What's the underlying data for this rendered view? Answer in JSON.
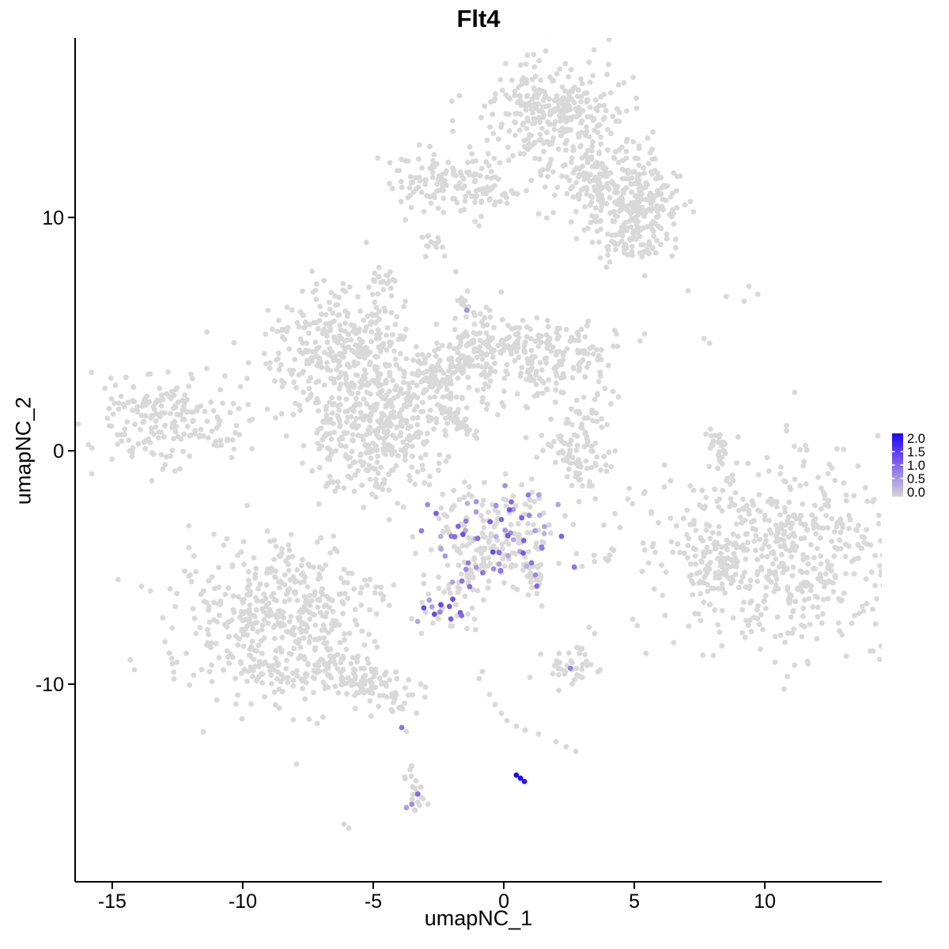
{
  "chart_data": {
    "type": "scatter",
    "title": "Flt4",
    "xlabel": "umapNC_1",
    "ylabel": "umapNC_2",
    "x_ticks": [
      -15,
      -10,
      -5,
      0,
      5,
      10
    ],
    "y_ticks": [
      -10,
      0,
      10
    ],
    "x_range": [
      -16.42,
      14.48
    ],
    "y_range": [
      -18.47,
      17.69
    ],
    "grid": "off",
    "legend_position": "right",
    "point_color_zero": "#D9D9D9",
    "colorbar": {
      "min": 0,
      "max": 2,
      "tick_values": [
        2.0,
        1.5,
        1.0,
        0.5,
        0.0
      ],
      "tick_labels": [
        "2.0",
        "1.5",
        "1.0",
        "0.5",
        "0.0"
      ],
      "stops": [
        [
          0,
          "#D3D3D3"
        ],
        [
          0.5,
          "#ADA0E2"
        ],
        [
          1,
          "#8568E6"
        ],
        [
          1.5,
          "#5433EE"
        ],
        [
          2,
          "#1C08F2"
        ]
      ]
    },
    "background_clusters": [
      {
        "name": "top-main",
        "n": 260,
        "cx": 1.91,
        "cy": 13.97,
        "sx": 1.36,
        "sy": 1.53
      },
      {
        "name": "top-main-upper",
        "n": 90,
        "cx": 1.76,
        "cy": 14.92,
        "sx": 1.0,
        "sy": 0.5
      },
      {
        "name": "top-right-1",
        "n": 170,
        "cx": 3.88,
        "cy": 11.69,
        "sx": 1.0,
        "sy": 1.1
      },
      {
        "name": "top-right-2",
        "n": 150,
        "cx": 5.39,
        "cy": 10.44,
        "sx": 0.85,
        "sy": 0.9
      },
      {
        "name": "top-right-3",
        "n": 60,
        "cx": 4.94,
        "cy": 8.98,
        "sx": 0.75,
        "sy": 0.5
      },
      {
        "name": "top-left-band",
        "n": 120,
        "cx": -2.27,
        "cy": 11.46,
        "sx": 1.0,
        "sy": 0.65
      },
      {
        "name": "top-left-small",
        "n": 14,
        "cx": -2.85,
        "cy": 8.88,
        "sx": 0.3,
        "sy": 0.35
      },
      {
        "name": "mid-top-small",
        "n": 16,
        "cx": -4.58,
        "cy": 7.39,
        "sx": 0.33,
        "sy": 0.36
      },
      {
        "name": "mid-left-lobe",
        "n": 210,
        "cx": -6.58,
        "cy": 4.81,
        "sx": 1.35,
        "sy": 1.25
      },
      {
        "name": "mid-central",
        "n": 300,
        "cx": -4.21,
        "cy": 2.71,
        "sx": 1.7,
        "sy": 1.5
      },
      {
        "name": "mid-lower-lobe",
        "n": 250,
        "cx": -5.21,
        "cy": 0.51,
        "sx": 1.3,
        "sy": 1.35
      },
      {
        "name": "mid-right",
        "n": 210,
        "cx": 1.55,
        "cy": 4.0,
        "sx": 1.45,
        "sy": 0.95
      },
      {
        "name": "far-left",
        "n": 210,
        "cx": -12.88,
        "cy": 1.29,
        "sx": 1.55,
        "sy": 0.95
      },
      {
        "name": "center-right-small",
        "n": 100,
        "cx": 3.03,
        "cy": 0.14,
        "sx": 0.85,
        "sy": 1.15
      },
      {
        "name": "right-large",
        "n": 600,
        "cx": 10.64,
        "cy": -4.41,
        "sx": 2.5,
        "sy": 2.05
      },
      {
        "name": "right-protrusion",
        "n": 40,
        "cx": 8.12,
        "cy": -4.75,
        "sx": 0.4,
        "sy": 0.75
      },
      {
        "name": "center-expr-gray",
        "n": 190,
        "cx": -0.12,
        "cy": -3.83,
        "sx": 1.55,
        "sy": 1.3
      },
      {
        "name": "small-expr-gray",
        "n": 14,
        "cx": -2.18,
        "cy": -6.88,
        "sx": 0.75,
        "sy": 0.5
      },
      {
        "name": "bottom-left-large",
        "n": 520,
        "cx": -8.64,
        "cy": -7.39,
        "sx": 1.9,
        "sy": 1.75
      },
      {
        "name": "bottom-mid-small",
        "n": 40,
        "cx": 2.39,
        "cy": -9.15,
        "sx": 0.55,
        "sy": 0.45
      },
      {
        "name": "single-expr-blob",
        "n": 16,
        "cx": -1.33,
        "cy": 6.1,
        "sx": 0.35,
        "sy": 0.5
      }
    ],
    "background_bands": [
      {
        "name": "top-trail",
        "x1": -1.21,
        "y1": 11.0,
        "x2": 0.55,
        "y2": 10.95,
        "w": 0.22,
        "n": 22
      },
      {
        "name": "mid-arm",
        "x1": -2.79,
        "y1": 3.05,
        "x2": 0.09,
        "y2": 4.81,
        "w": 0.55,
        "n": 130
      },
      {
        "name": "mid-smear",
        "x1": -2.42,
        "y1": 1.9,
        "x2": -0.94,
        "y2": 0.47,
        "w": 0.1,
        "n": 45
      },
      {
        "name": "right-arc",
        "x1": 7.97,
        "y1": 0.95,
        "x2": 8.33,
        "y2": -0.51,
        "w": 0.15,
        "n": 22
      },
      {
        "name": "center-arm-left",
        "x1": -0.82,
        "y1": -4.58,
        "x2": -2.09,
        "y2": -6.03,
        "w": 0.22,
        "n": 25
      },
      {
        "name": "center-arm-right",
        "x1": 0.94,
        "y1": -4.41,
        "x2": 1.3,
        "y2": -5.83,
        "w": 0.16,
        "n": 18
      },
      {
        "name": "bottom-left-tail",
        "x1": -6.94,
        "y1": -9.32,
        "x2": -4.0,
        "y2": -10.71,
        "w": 0.5,
        "n": 120
      },
      {
        "name": "bottom-strand",
        "x1": -3.67,
        "y1": -13.49,
        "x2": -3.15,
        "y2": -15.32,
        "w": 0.2,
        "n": 22
      },
      {
        "name": "mid-top-strand",
        "x1": -4.76,
        "y1": 6.95,
        "x2": -5.0,
        "y2": 5.08,
        "w": 0.18,
        "n": 8
      },
      {
        "name": "blob-strand",
        "x1": -1.44,
        "y1": 5.59,
        "x2": -1.58,
        "y2": 4.24,
        "w": 0.15,
        "n": 6
      }
    ],
    "sparse_points": [
      [
        7.06,
        6.85
      ],
      [
        8.52,
        6.61
      ],
      [
        9.39,
        7.05
      ],
      [
        9.73,
        6.71
      ],
      [
        9.21,
        6.41
      ],
      [
        7.67,
        4.81
      ],
      [
        7.88,
        4.61
      ],
      [
        8.42,
        0.37
      ],
      [
        8.36,
        -0.27
      ],
      [
        -1.12,
        -7.22
      ],
      [
        3.27,
        -7.56
      ],
      [
        3.48,
        -7.83
      ],
      [
        4.94,
        -7.22
      ],
      [
        5.12,
        -7.49
      ],
      [
        -0.82,
        -9.46
      ],
      [
        -0.94,
        -9.76
      ],
      [
        -0.55,
        -10.44
      ],
      [
        -0.33,
        -10.88
      ],
      [
        -0.09,
        -11.25
      ],
      [
        0.12,
        -11.56
      ],
      [
        0.48,
        -11.8
      ],
      [
        0.82,
        -11.97
      ],
      [
        1.33,
        -12.14
      ],
      [
        2.0,
        -12.47
      ],
      [
        2.39,
        -12.68
      ],
      [
        2.76,
        -12.88
      ],
      [
        -6.12,
        -16.0
      ],
      [
        -5.94,
        -16.17
      ],
      [
        -3.94,
        -10.98
      ],
      [
        3.0,
        -4.95
      ],
      [
        -3.15,
        -7.83
      ],
      [
        -1.0,
        -6.0
      ],
      [
        -3.06,
        10.24
      ]
    ],
    "expression_clusters": [
      {
        "name": "center-expressing",
        "n": 55,
        "cx": -0.1,
        "cy": -3.8,
        "sx": 1.25,
        "sy": 1.05,
        "vmin": 0.3,
        "vmax": 1.3
      },
      {
        "name": "small-expressing",
        "n": 13,
        "cx": -2.2,
        "cy": -6.85,
        "sx": 0.55,
        "sy": 0.38,
        "vmin": 0.4,
        "vmax": 1.3
      }
    ],
    "expression_points": [
      [
        -1.42,
        6.03,
        0.6
      ],
      [
        -1.36,
        -4.81,
        0.85
      ],
      [
        -1.45,
        -5.08,
        0.7
      ],
      [
        -1.6,
        -5.58,
        0.9
      ],
      [
        1.06,
        -4.81,
        0.9
      ],
      [
        1.21,
        -5.32,
        0.7
      ],
      [
        1.27,
        -5.8,
        1.0
      ],
      [
        2.7,
        -4.98,
        0.9
      ],
      [
        2.55,
        -9.32,
        0.8
      ],
      [
        -3.91,
        -11.86,
        0.9
      ],
      [
        -3.3,
        -14.71,
        1.0
      ],
      [
        -3.52,
        -15.15,
        0.7
      ],
      [
        -3.73,
        -15.29,
        0.5
      ],
      [
        0.48,
        -13.9,
        2.0
      ],
      [
        0.64,
        -14.03,
        2.0
      ],
      [
        0.79,
        -14.17,
        1.9
      ]
    ]
  }
}
